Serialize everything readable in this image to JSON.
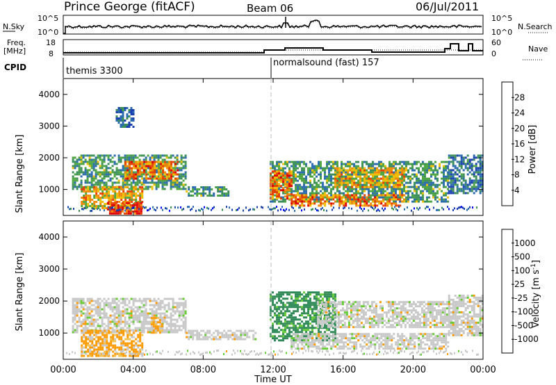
{
  "header": {
    "station": "Prince George (fitACF)",
    "beam": "Beam 06",
    "date": "06/Jul/2011"
  },
  "strips": {
    "nsky_label": "N.Sky",
    "nsky_ticks": [
      "10^5",
      "10^0"
    ],
    "nsearch_label": "N.Search",
    "nsearch_ticks": [
      "10^5",
      "10^0"
    ],
    "freq_label_1": "Freq.",
    "freq_label_2": "[MHz]",
    "freq_ticks": [
      "18",
      "8"
    ],
    "nave_label": "Nave",
    "nave_ticks": [
      "60",
      "0"
    ],
    "cpid_label": "CPID",
    "cpid_1": "themis 3300",
    "cpid_2": "normalsound (fast) 157"
  },
  "colors": {
    "power": [
      "#0000ff",
      "#1a3fb0",
      "#2b6cb0",
      "#3d8f5a",
      "#4ea640",
      "#f0c000",
      "#f08a00",
      "#e84000",
      "#e00000"
    ],
    "velocity": [
      "#e00000",
      "#ff6000",
      "#ff9a00",
      "#f0c050",
      "#c8c8c8",
      "#c8c8c8",
      "#66cc33",
      "#2e8b57",
      "#2b6cb0",
      "#1a3fb0"
    ]
  },
  "chart_data": [
    {
      "type": "heatmap",
      "panel": "power",
      "xlabel": "Time UT",
      "ylabel": "Slant Range [km]",
      "x_ticks": [
        "00:00",
        "04:00",
        "08:00",
        "12:00",
        "16:00",
        "20:00",
        "00:00"
      ],
      "xlim_hours": [
        0,
        24
      ],
      "ylim_km": [
        180,
        4500
      ],
      "y_ticks": [
        1000,
        2000,
        3000,
        4000
      ],
      "colorbar_label": "Power [dB]",
      "colorbar_ticks": [
        "28",
        "24",
        "20",
        "16",
        "12",
        "8",
        "4"
      ],
      "colorbar_range": [
        0,
        30
      ],
      "regions": [
        {
          "t_start": 0.5,
          "t_end": 7.0,
          "r_start": 1000,
          "r_end": 2100,
          "level": 12
        },
        {
          "t_start": 3.5,
          "t_end": 6.5,
          "r_start": 1350,
          "r_end": 1900,
          "level": 24
        },
        {
          "t_start": 1.0,
          "t_end": 4.5,
          "r_start": 400,
          "r_end": 1100,
          "level": 20
        },
        {
          "t_start": 2.5,
          "t_end": 4.5,
          "r_start": 250,
          "r_end": 600,
          "level": 28
        },
        {
          "t_start": 3.0,
          "t_end": 4.0,
          "r_start": 3000,
          "r_end": 3600,
          "level": 8
        },
        {
          "t_start": 7.0,
          "t_end": 9.5,
          "r_start": 800,
          "r_end": 1100,
          "level": 12
        },
        {
          "t_start": 11.8,
          "t_end": 22.0,
          "r_start": 600,
          "r_end": 1900,
          "level": 12
        },
        {
          "t_start": 11.8,
          "t_end": 13.0,
          "r_start": 700,
          "r_end": 1600,
          "level": 24
        },
        {
          "t_start": 13.0,
          "t_end": 19.5,
          "r_start": 500,
          "r_end": 850,
          "level": 24
        },
        {
          "t_start": 15.5,
          "t_end": 19.5,
          "r_start": 1100,
          "r_end": 1700,
          "level": 20
        },
        {
          "t_start": 22.0,
          "t_end": 24.0,
          "r_start": 900,
          "r_end": 2100,
          "level": 8
        }
      ]
    },
    {
      "type": "heatmap",
      "panel": "velocity",
      "xlabel": "Time UT",
      "ylabel": "Slant Range [km]",
      "x_ticks": [
        "00:00",
        "04:00",
        "08:00",
        "12:00",
        "16:00",
        "20:00",
        "00:00"
      ],
      "xlim_hours": [
        0,
        24
      ],
      "ylim_km": [
        180,
        4500
      ],
      "y_ticks": [
        1000,
        2000,
        3000,
        4000
      ],
      "colorbar_label": "Velocity [m s^-1]",
      "colorbar_ticks": [
        "1000",
        "500",
        "100",
        "25",
        "-25",
        "-100",
        "-500",
        "-1000"
      ],
      "regions": [
        {
          "t_start": 0.5,
          "t_end": 7.0,
          "r_start": 1000,
          "r_end": 2100,
          "level": 0
        },
        {
          "t_start": 1.0,
          "t_end": 4.5,
          "r_start": 300,
          "r_end": 1100,
          "level": -200
        },
        {
          "t_start": 5.0,
          "t_end": 5.6,
          "r_start": 1000,
          "r_end": 1500,
          "level": -200
        },
        {
          "t_start": 7.0,
          "t_end": 11.0,
          "r_start": 800,
          "r_end": 1100,
          "level": 0
        },
        {
          "t_start": 11.8,
          "t_end": 15.5,
          "r_start": 800,
          "r_end": 2300,
          "level": 300
        },
        {
          "t_start": 13.0,
          "t_end": 22.0,
          "r_start": 500,
          "r_end": 1000,
          "level": 0
        },
        {
          "t_start": 14.5,
          "t_end": 22.5,
          "r_start": 1200,
          "r_end": 2000,
          "level": 0
        },
        {
          "t_start": 22.0,
          "t_end": 24.0,
          "r_start": 900,
          "r_end": 2200,
          "level": 0
        }
      ]
    }
  ]
}
